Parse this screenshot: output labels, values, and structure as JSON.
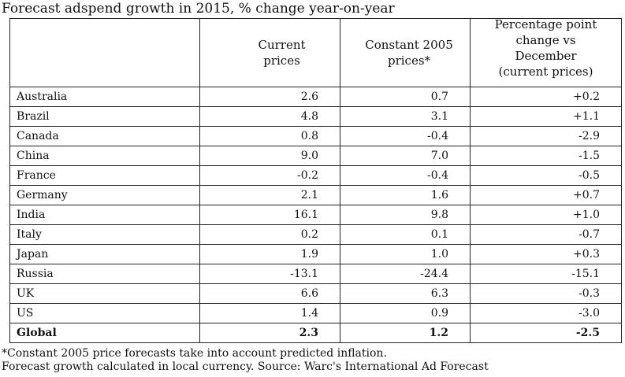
{
  "title": "Forecast adspend growth in 2015, % change year-on-year",
  "table": {
    "headers": [
      "",
      "Current\nprices",
      "Constant 2005\nprices*",
      "Percentage point\nchange vs\nDecember\n(current prices)"
    ],
    "rows": [
      [
        "Australia",
        "2.6",
        "0.7",
        "+0.2"
      ],
      [
        "Brazil",
        "4.8",
        "3.1",
        "+1.1"
      ],
      [
        "Canada",
        "0.8",
        "-0.4",
        "-2.9"
      ],
      [
        "China",
        "9.0",
        "7.0",
        "-1.5"
      ],
      [
        "France",
        "-0.2",
        "-0.4",
        "-0.5"
      ],
      [
        "Germany",
        "2.1",
        "1.6",
        "+0.7"
      ],
      [
        "India",
        "16.1",
        "9.8",
        "+1.0"
      ],
      [
        "Italy",
        "0.2",
        "0.1",
        "-0.7"
      ],
      [
        "Japan",
        "1.9",
        "1.0",
        "+0.3"
      ],
      [
        "Russia",
        "-13.1",
        "-24.4",
        "-15.1"
      ],
      [
        "UK",
        "6.6",
        "6.3",
        "-0.3"
      ],
      [
        "US",
        "1.4",
        "0.9",
        "-3.0"
      ]
    ],
    "total": [
      "Global",
      "2.3",
      "1.2",
      "-2.5"
    ]
  },
  "footnotes": [
    "*Constant 2005 price forecasts take into account predicted inflation.",
    "Forecast growth calculated in local currency. Source: Warc's International Ad Forecast"
  ]
}
